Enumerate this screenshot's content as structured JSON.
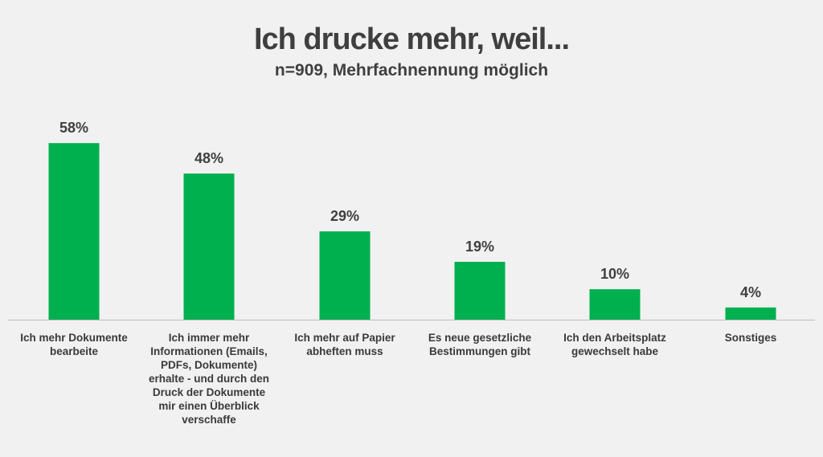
{
  "title": "Ich drucke mehr, weil...",
  "subtitle": "n=909, Mehrfachnennung möglich",
  "chart_data": {
    "type": "bar",
    "categories": [
      "Ich mehr Dokumente bearbeite",
      "Ich immer mehr Informationen (Emails, PDFs, Dokumente) erhalte - und durch den Druck der Dokumente mir einen Überblick verschaffe",
      "Ich mehr auf Papier abheften muss",
      "Es neue gesetzliche Bestimmungen gibt",
      "Ich den Arbeitsplatz gewechselt habe",
      "Sonstiges"
    ],
    "values": [
      58,
      48,
      29,
      19,
      10,
      4
    ],
    "data_labels": [
      "58%",
      "48%",
      "29%",
      "19%",
      "10%",
      "4%"
    ],
    "unit": "%",
    "ylim": [
      0,
      60
    ],
    "grid": false,
    "bar_color": "#00b04f"
  }
}
